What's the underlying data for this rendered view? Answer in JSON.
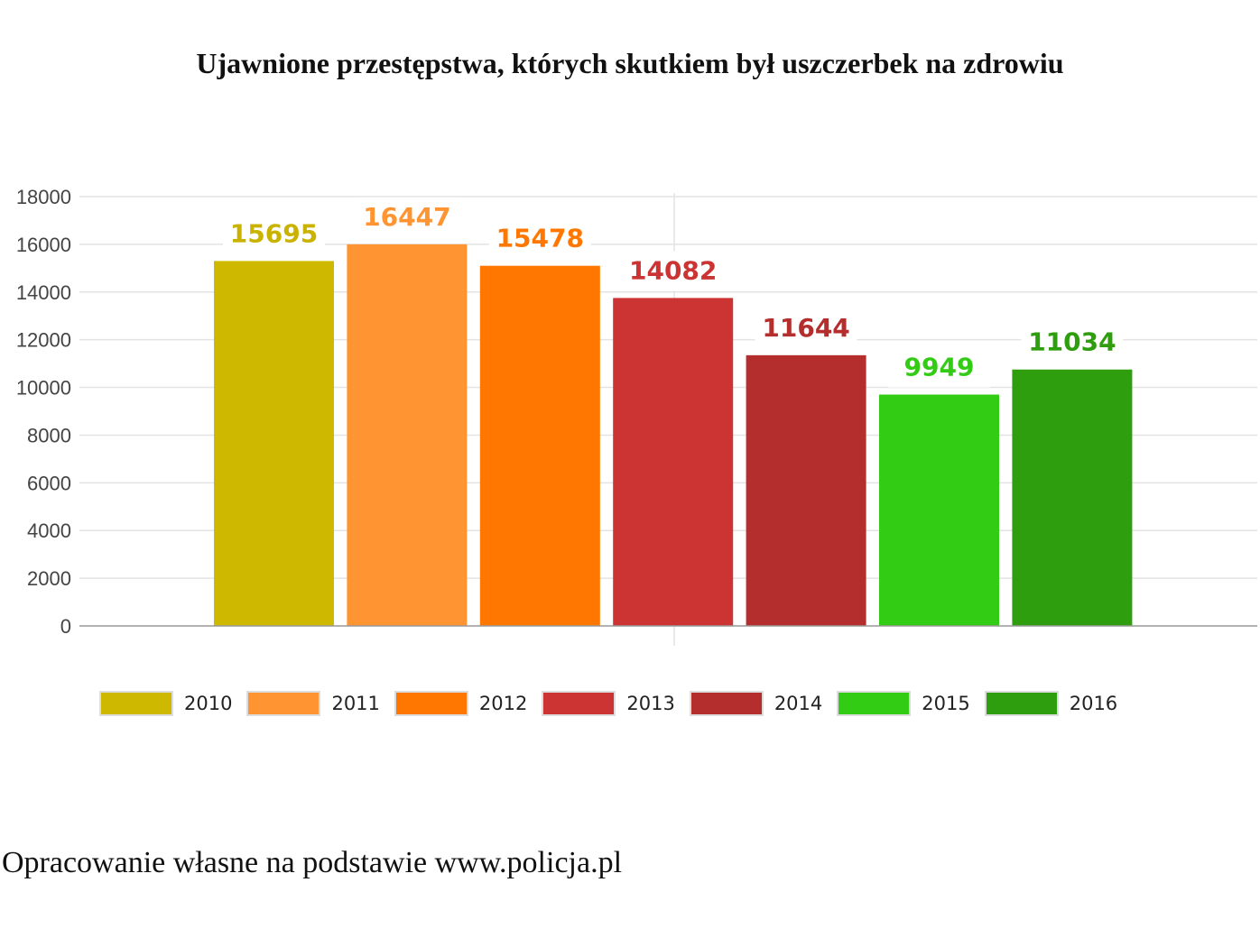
{
  "chart_data": {
    "type": "bar",
    "title": "Ujawnione przestępstwa, których skutkiem był uszczerbek na zdrowiu",
    "xlabel": "",
    "ylabel": "",
    "ylim": [
      0,
      18000
    ],
    "yticks": [
      "0",
      "2000",
      "4000",
      "6000",
      "8000",
      "10000",
      "12000",
      "14000",
      "16000",
      "18000"
    ],
    "grid": true,
    "legend_position": "bottom",
    "categories": [
      "2010",
      "2011",
      "2012",
      "2013",
      "2014",
      "2015",
      "2016"
    ],
    "values": [
      15695,
      16447,
      15478,
      14082,
      11644,
      9949,
      11034
    ],
    "bar_heights_approx": [
      15300,
      16000,
      15100,
      13750,
      11350,
      9700,
      10750
    ],
    "colors": [
      "#cfb900",
      "#ff9433",
      "#ff7700",
      "#cc3333",
      "#b52e2e",
      "#33cc14",
      "#2e9e0e"
    ],
    "label_colors": [
      "#c9b300",
      "#ff9433",
      "#ff7700",
      "#cc3333",
      "#b52e2e",
      "#33cc14",
      "#2e9e0e"
    ]
  },
  "legend": {
    "items": [
      {
        "label": "2010",
        "color": "#cfb900"
      },
      {
        "label": "2011",
        "color": "#ff9433"
      },
      {
        "label": "2012",
        "color": "#ff7700"
      },
      {
        "label": "2013",
        "color": "#cc3333"
      },
      {
        "label": "2014",
        "color": "#b52e2e"
      },
      {
        "label": "2015",
        "color": "#33cc14"
      },
      {
        "label": "2016",
        "color": "#2e9e0e"
      }
    ]
  },
  "source": "Opracowanie własne na podstawie www.policja.pl"
}
